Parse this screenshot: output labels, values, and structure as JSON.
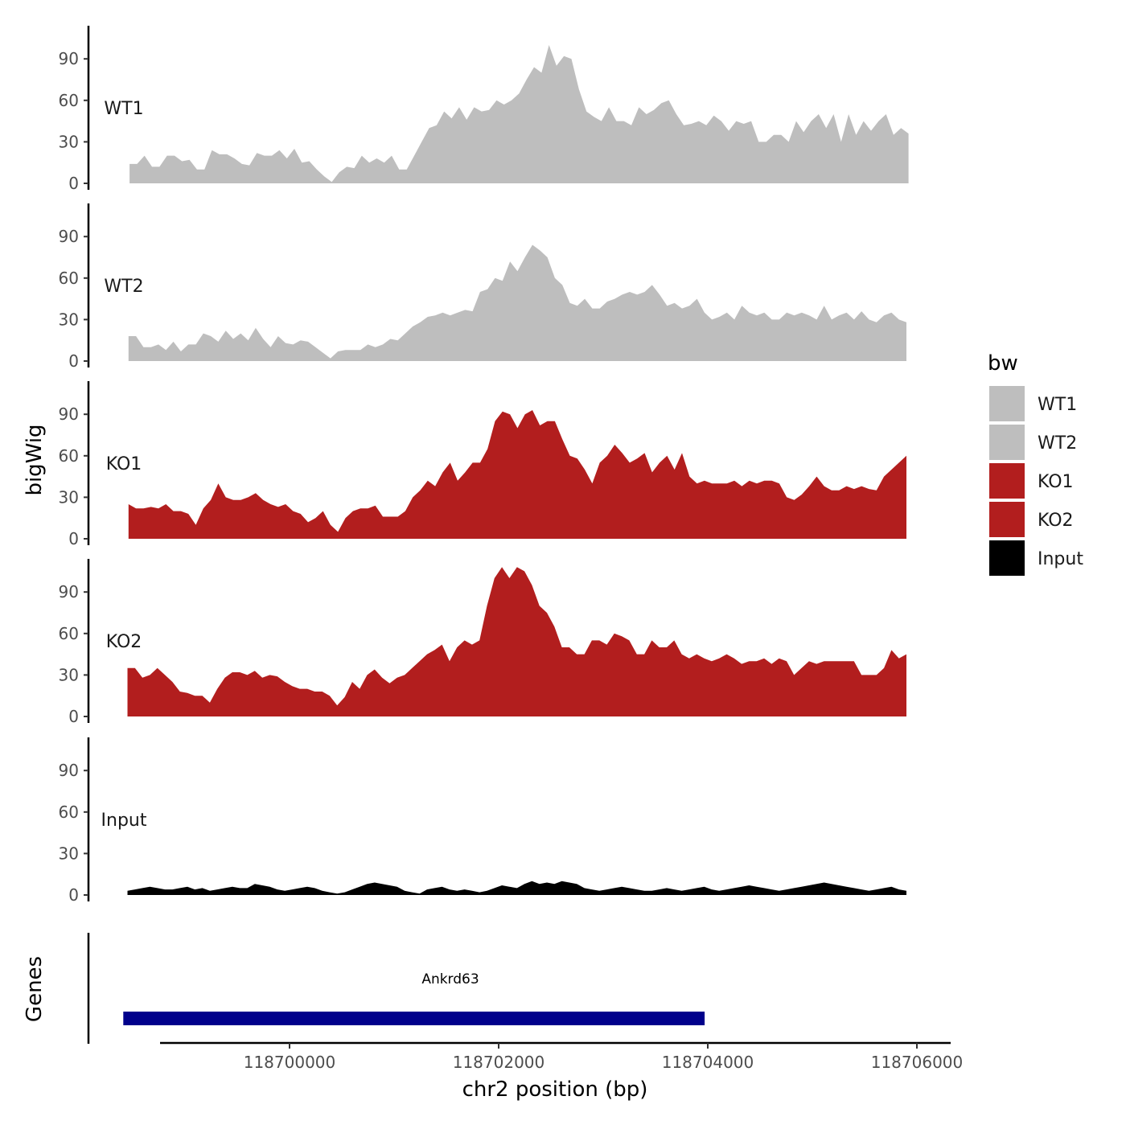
{
  "chart_data": {
    "type": "area",
    "y_axis_title": "bigWig",
    "x_axis_title": "chr2 position (bp)",
    "genes_axis_title": "Genes",
    "xlim": [
      118698100,
      118705950
    ],
    "ylim": [
      0,
      115
    ],
    "y_ticks": [
      "0",
      "30",
      "60",
      "90"
    ],
    "x_ticks": [
      {
        "value": 118700000,
        "label": "118700000"
      },
      {
        "value": 118702000,
        "label": "118702000"
      },
      {
        "value": 118704000,
        "label": "118704000"
      },
      {
        "value": 118706000,
        "label": "118706000"
      }
    ],
    "legend": {
      "title": "bw",
      "entries": [
        {
          "label": "WT1",
          "color": "#bebebe"
        },
        {
          "label": "WT2",
          "color": "#bebebe"
        },
        {
          "label": "KO1",
          "color": "#b21e1e"
        },
        {
          "label": "KO2",
          "color": "#b21e1e"
        },
        {
          "label": "Input",
          "color": "#000000"
        }
      ]
    },
    "series": [
      {
        "name": "WT1",
        "color": "#bebebe",
        "x_start": 118698470,
        "x_end": 118705920,
        "values": [
          14,
          14,
          20,
          12,
          12,
          20,
          20,
          16,
          17,
          10,
          10,
          24,
          21,
          21,
          18,
          14,
          13,
          22,
          20,
          20,
          24,
          18,
          25,
          15,
          16,
          10,
          5,
          1,
          8,
          12,
          11,
          20,
          15,
          18,
          15,
          20,
          10,
          10,
          20,
          30,
          40,
          42,
          52,
          47,
          55,
          46,
          55,
          52,
          53,
          60,
          57,
          60,
          65,
          75,
          84,
          80,
          100,
          85,
          92,
          90,
          68,
          52,
          48,
          45,
          55,
          45,
          45,
          42,
          55,
          50,
          53,
          58,
          60,
          50,
          42,
          43,
          45,
          42,
          49,
          45,
          38,
          45,
          43,
          45,
          30,
          30,
          35,
          35,
          30,
          45,
          37,
          45,
          50,
          40,
          50,
          30,
          50,
          35,
          45,
          38,
          45,
          50,
          35,
          40,
          36
        ]
      },
      {
        "name": "WT2",
        "color": "#bebebe",
        "x_start": 118698460,
        "x_end": 118705900,
        "values": [
          18,
          18,
          10,
          10,
          12,
          8,
          14,
          7,
          12,
          12,
          20,
          18,
          14,
          22,
          16,
          20,
          15,
          24,
          16,
          10,
          18,
          13,
          12,
          15,
          14,
          10,
          6,
          2,
          7,
          8,
          8,
          8,
          12,
          10,
          12,
          16,
          15,
          20,
          25,
          28,
          32,
          33,
          35,
          33,
          35,
          37,
          36,
          50,
          52,
          60,
          58,
          72,
          65,
          75,
          84,
          80,
          75,
          60,
          55,
          42,
          40,
          45,
          38,
          38,
          43,
          45,
          48,
          50,
          48,
          50,
          55,
          48,
          40,
          42,
          38,
          40,
          45,
          35,
          30,
          32,
          35,
          30,
          40,
          35,
          33,
          35,
          30,
          30,
          35,
          33,
          35,
          33,
          30,
          40,
          30,
          33,
          35,
          30,
          36,
          30,
          28,
          33,
          35,
          30,
          28
        ]
      },
      {
        "name": "KO1",
        "color": "#b21e1e",
        "x_start": 118698460,
        "x_end": 118705900,
        "values": [
          25,
          22,
          22,
          23,
          22,
          25,
          20,
          20,
          18,
          10,
          22,
          28,
          40,
          30,
          28,
          28,
          30,
          33,
          28,
          25,
          23,
          25,
          20,
          18,
          12,
          15,
          20,
          10,
          5,
          15,
          20,
          22,
          22,
          24,
          16,
          16,
          16,
          20,
          30,
          35,
          42,
          38,
          48,
          55,
          42,
          48,
          55,
          55,
          65,
          85,
          92,
          90,
          80,
          90,
          93,
          82,
          85,
          85,
          72,
          60,
          58,
          50,
          40,
          55,
          60,
          68,
          62,
          55,
          58,
          62,
          48,
          55,
          60,
          50,
          62,
          45,
          40,
          42,
          40,
          40,
          40,
          42,
          38,
          42,
          40,
          42,
          42,
          40,
          30,
          28,
          32,
          38,
          45,
          38,
          35,
          35,
          38,
          36,
          38,
          36,
          35,
          45,
          50,
          55,
          60
        ]
      },
      {
        "name": "KO2",
        "color": "#b21e1e",
        "x_start": 118698450,
        "x_end": 118705900,
        "values": [
          35,
          35,
          28,
          30,
          35,
          30,
          25,
          18,
          17,
          15,
          15,
          10,
          20,
          28,
          32,
          32,
          30,
          33,
          28,
          30,
          29,
          25,
          22,
          20,
          20,
          18,
          18,
          15,
          8,
          14,
          25,
          20,
          30,
          34,
          28,
          24,
          28,
          30,
          35,
          40,
          45,
          48,
          52,
          40,
          50,
          55,
          52,
          55,
          80,
          100,
          108,
          100,
          108,
          105,
          95,
          80,
          75,
          65,
          50,
          50,
          45,
          45,
          55,
          55,
          52,
          60,
          58,
          55,
          45,
          45,
          55,
          50,
          50,
          55,
          45,
          42,
          45,
          42,
          40,
          42,
          45,
          42,
          38,
          40,
          40,
          42,
          38,
          42,
          40,
          30,
          35,
          40,
          38,
          40,
          40,
          40,
          40,
          40,
          30,
          30,
          30,
          35,
          48,
          42,
          45
        ]
      },
      {
        "name": "Input",
        "color": "#000000",
        "x_start": 118698450,
        "x_end": 118705900,
        "values": [
          3,
          4,
          5,
          6,
          5,
          4,
          4,
          5,
          6,
          4,
          5,
          3,
          4,
          5,
          6,
          5,
          5,
          8,
          7,
          6,
          4,
          3,
          4,
          5,
          6,
          5,
          3,
          2,
          1,
          2,
          4,
          6,
          8,
          9,
          8,
          7,
          6,
          3,
          2,
          1,
          4,
          5,
          6,
          4,
          3,
          4,
          3,
          2,
          3,
          5,
          7,
          6,
          5,
          8,
          10,
          8,
          9,
          8,
          10,
          9,
          8,
          5,
          4,
          3,
          4,
          5,
          6,
          5,
          4,
          3,
          3,
          4,
          5,
          4,
          3,
          4,
          5,
          6,
          4,
          3,
          4,
          5,
          6,
          7,
          6,
          5,
          4,
          3,
          4,
          5,
          6,
          7,
          8,
          9,
          8,
          7,
          6,
          5,
          4,
          3,
          4,
          5,
          6,
          4,
          3
        ]
      }
    ],
    "genes": [
      {
        "name": "Ankrd63",
        "start": 118698410,
        "end": 118703970,
        "color": "#00008b"
      }
    ]
  }
}
